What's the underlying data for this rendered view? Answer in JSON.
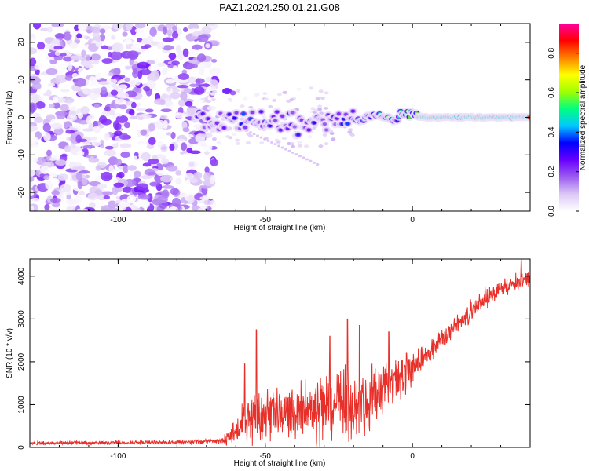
{
  "title": "PAZ1.2024.250.01.21.G08",
  "chart_data": [
    {
      "type": "heatmap",
      "xlabel": "Height of straight line (km)",
      "ylabel": "Frequency (Hz)",
      "xlim": [
        -130,
        40
      ],
      "ylim": [
        -25,
        25
      ],
      "xticks": [
        -100,
        -50,
        0
      ],
      "yticks": [
        -20,
        -10,
        0,
        10,
        20
      ],
      "colorbar": {
        "label": "Normalized spectral amplitude",
        "range": [
          0.0,
          0.95
        ],
        "ticks": [
          "0.0",
          "0.2",
          "0.4",
          "0.6",
          "0.8"
        ],
        "tick_values": [
          0.0,
          0.2,
          0.4,
          0.6,
          0.8
        ],
        "colors": [
          "#ffffff",
          "#dcc8f5",
          "#9b5cf0",
          "#6a00ff",
          "#0000ff",
          "#00c8ff",
          "#00ff80",
          "#a0ff00",
          "#ffff00",
          "#ff8000",
          "#ff0000",
          "#ff00a0"
        ]
      },
      "features": {
        "noise_region_x": [
          -130,
          -65
        ],
        "carrier_line_freq_hz": 0,
        "carrier_onset_x": -73,
        "strong_carrier_onset_x": -5
      }
    },
    {
      "type": "line",
      "xlabel": "Height of straight line (km)",
      "ylabel": "SNR (10 * v/v)",
      "xlim": [
        -130,
        40
      ],
      "ylim": [
        0,
        4400
      ],
      "xticks": [
        -100,
        -50,
        0
      ],
      "yticks": [
        0,
        1000,
        2000,
        3000,
        4000
      ],
      "color": "#e8302a",
      "series": [
        {
          "envelope_x": [
            -130,
            -100,
            -80,
            -65,
            -60,
            -55,
            -50,
            -40,
            -30,
            -20,
            -10,
            -5,
            0,
            10,
            20,
            30,
            40
          ],
          "envelope_mean": [
            100,
            110,
            120,
            150,
            350,
            700,
            750,
            800,
            900,
            1000,
            1250,
            1550,
            1900,
            2500,
            3200,
            3700,
            3950
          ],
          "envelope_spread": [
            60,
            70,
            70,
            100,
            500,
            900,
            800,
            900,
            1200,
            1300,
            900,
            800,
            600,
            400,
            350,
            300,
            250
          ],
          "peaks": [
            {
              "x": -53,
              "y": 2750
            },
            {
              "x": -57,
              "y": 1950
            },
            {
              "x": -28,
              "y": 2600
            },
            {
              "x": -22,
              "y": 3000
            },
            {
              "x": -18,
              "y": 2850
            },
            {
              "x": -8,
              "y": 2700
            },
            {
              "x": -2,
              "y": 2200
            },
            {
              "x": 37,
              "y": 4400
            }
          ]
        }
      ]
    }
  ]
}
